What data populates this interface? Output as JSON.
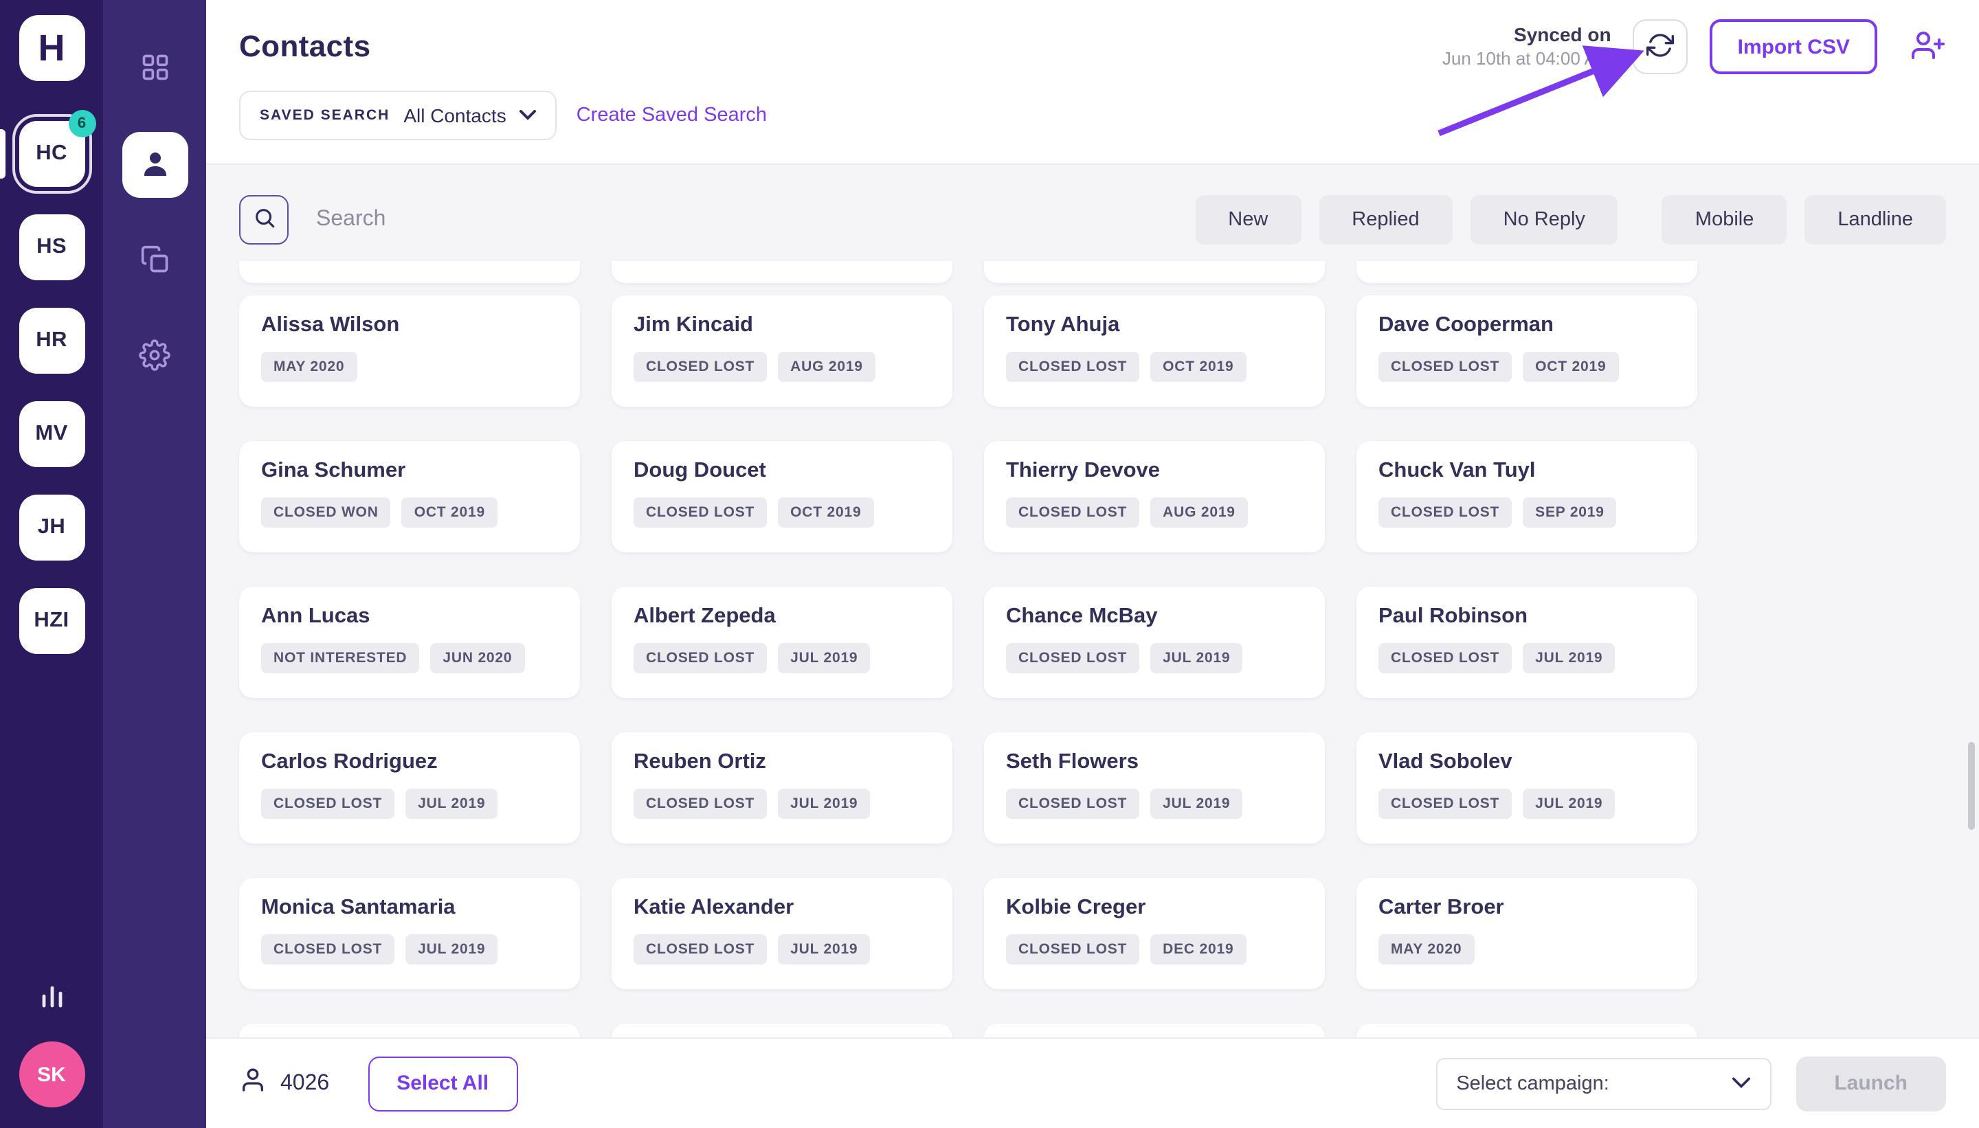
{
  "colors": {
    "accent": "#7c3aed",
    "sidebar_dark": "#2b1a5e",
    "sidebar_rail": "#3a2a72",
    "badge_teal": "#2fd3c4",
    "avatar_pink": "#ef549d",
    "title_ink": "#2e2559",
    "page_bg": "#f5f5f8"
  },
  "sidebar": {
    "logo_letter": "H",
    "accounts": [
      {
        "label": "HC",
        "badge": "6",
        "active": true
      },
      {
        "label": "HS"
      },
      {
        "label": "HR"
      },
      {
        "label": "MV"
      },
      {
        "label": "JH"
      },
      {
        "label": "HZI"
      }
    ],
    "user_avatar": "SK"
  },
  "header": {
    "title": "Contacts",
    "synced_label": "Synced on",
    "synced_time": "Jun 10th at 04:00 AM",
    "import_csv": "Import CSV"
  },
  "saved_search": {
    "label": "SAVED SEARCH",
    "selected": "All Contacts",
    "create_link": "Create Saved Search"
  },
  "search_placeholder": "Search",
  "filter_groups": [
    {
      "chips": [
        "New",
        "Replied",
        "No Reply"
      ]
    },
    {
      "chips": [
        "Mobile",
        "Landline"
      ]
    }
  ],
  "contacts": [
    {
      "name": "Alissa Wilson",
      "tags": [
        "MAY 2020"
      ]
    },
    {
      "name": "Jim Kincaid",
      "tags": [
        "CLOSED LOST",
        "AUG 2019"
      ]
    },
    {
      "name": "Tony Ahuja",
      "tags": [
        "CLOSED LOST",
        "OCT 2019"
      ]
    },
    {
      "name": "Dave Cooperman",
      "tags": [
        "CLOSED LOST",
        "OCT 2019"
      ]
    },
    {
      "name": "Gina Schumer",
      "tags": [
        "CLOSED WON",
        "OCT 2019"
      ]
    },
    {
      "name": "Doug Doucet",
      "tags": [
        "CLOSED LOST",
        "OCT 2019"
      ]
    },
    {
      "name": "Thierry Devove",
      "tags": [
        "CLOSED LOST",
        "AUG 2019"
      ]
    },
    {
      "name": "Chuck Van Tuyl",
      "tags": [
        "CLOSED LOST",
        "SEP 2019"
      ]
    },
    {
      "name": "Ann Lucas",
      "tags": [
        "NOT INTERESTED",
        "JUN 2020"
      ]
    },
    {
      "name": "Albert Zepeda",
      "tags": [
        "CLOSED LOST",
        "JUL 2019"
      ]
    },
    {
      "name": "Chance McBay",
      "tags": [
        "CLOSED LOST",
        "JUL 2019"
      ]
    },
    {
      "name": "Paul Robinson",
      "tags": [
        "CLOSED LOST",
        "JUL 2019"
      ]
    },
    {
      "name": "Carlos Rodriguez",
      "tags": [
        "CLOSED LOST",
        "JUL 2019"
      ]
    },
    {
      "name": "Reuben Ortiz",
      "tags": [
        "CLOSED LOST",
        "JUL 2019"
      ]
    },
    {
      "name": "Seth Flowers",
      "tags": [
        "CLOSED LOST",
        "JUL 2019"
      ]
    },
    {
      "name": "Vlad Sobolev",
      "tags": [
        "CLOSED LOST",
        "JUL 2019"
      ]
    },
    {
      "name": "Monica Santamaria",
      "tags": [
        "CLOSED LOST",
        "JUL 2019"
      ]
    },
    {
      "name": "Katie Alexander",
      "tags": [
        "CLOSED LOST",
        "JUL 2019"
      ]
    },
    {
      "name": "Kolbie Creger",
      "tags": [
        "CLOSED LOST",
        "DEC 2019"
      ]
    },
    {
      "name": "Carter Broer",
      "tags": [
        "MAY 2020"
      ]
    }
  ],
  "footer": {
    "count": "4026",
    "select_all": "Select All",
    "campaign_placeholder": "Select campaign:",
    "launch": "Launch"
  }
}
